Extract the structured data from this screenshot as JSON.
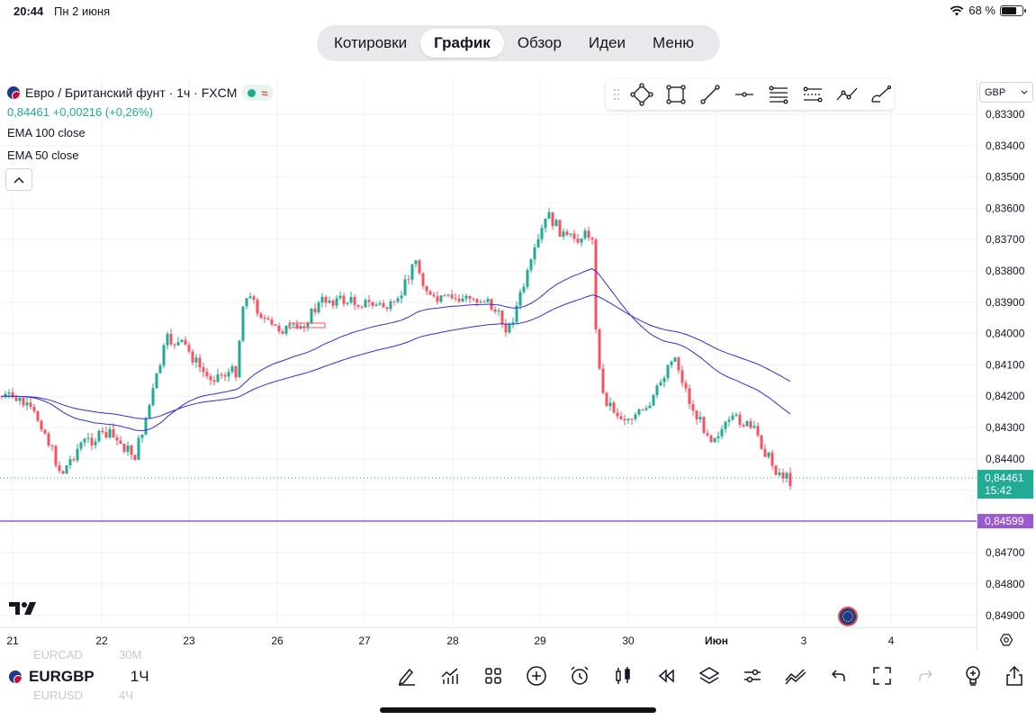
{
  "status_bar": {
    "time": "20:44",
    "date": "Пн 2 июня",
    "battery": "68 %",
    "battery_level": 0.68
  },
  "nav": {
    "tabs": [
      {
        "label": "Котировки",
        "active": false
      },
      {
        "label": "График",
        "active": true
      },
      {
        "label": "Обзор",
        "active": false
      },
      {
        "label": "Идеи",
        "active": false
      },
      {
        "label": "Меню",
        "active": false
      }
    ]
  },
  "legend": {
    "title": "Евро / Британский фунт · 1ч · FXCM",
    "market_status_icon": "market-open-dot",
    "price_line": "0,84461 +0,00216 (+0,26%)",
    "indicators": [
      "EMA 100 close",
      "EMA 50 close"
    ]
  },
  "currency_selector": "GBP",
  "drawing_tools": [
    "drag-handle-icon",
    "path-icon",
    "rectangle-icon",
    "trend-line-icon",
    "horizontal-ray-icon",
    "fib-retracement-icon",
    "parallel-channel-icon",
    "polyline-icon",
    "brush-icon"
  ],
  "chart_data": {
    "type": "candlestick",
    "symbol": "EURGBP",
    "interval": "1Ч",
    "y_axis_ticks": [
      "0,83300",
      "0,83400",
      "0,83500",
      "0,83600",
      "0,83700",
      "0,83800",
      "0,83900",
      "0,84000",
      "0,84100",
      "0,84200",
      "0,84300",
      "0,84400",
      "0,84500",
      "0,84600",
      "0,84700",
      "0,84800",
      "0,84900"
    ],
    "y_axis_values": [
      0.833,
      0.834,
      0.835,
      0.836,
      0.837,
      0.838,
      0.839,
      0.84,
      0.841,
      0.842,
      0.843,
      0.844,
      0.845,
      0.846,
      0.847,
      0.848,
      0.849
    ],
    "x_axis_ticks": [
      "21",
      "22",
      "23",
      "26",
      "27",
      "28",
      "29",
      "30",
      "Июн",
      "3",
      "4"
    ],
    "last_price_label": "0,84461",
    "last_price_timer": "15:42",
    "horizontal_line_label": "0,84599",
    "colors": {
      "up": "#22ab94",
      "down": "#f7525f",
      "ema": "#2f2fd4",
      "hline": "#9b59d0"
    },
    "series": [
      {
        "name": "EMA 100 close"
      },
      {
        "name": "EMA 50 close"
      }
    ]
  },
  "bottom": {
    "symbol": "EURGBP",
    "interval": "1Ч",
    "ghost_above": {
      "symbol": "EURCAD",
      "interval": "30М"
    },
    "ghost_below": {
      "symbol": "EURUSD",
      "interval": "4Ч"
    },
    "tools": [
      "draw-icon",
      "indicators-icon",
      "templates-icon",
      "add-icon",
      "alert-icon",
      "chart-type-icon",
      "replay-icon",
      "layers-icon",
      "settings-sliders-icon",
      "compare-icon",
      "undo-icon",
      "fullscreen-icon",
      "redo-icon"
    ],
    "right_tools": [
      "ideas-bulb-icon",
      "share-icon"
    ]
  }
}
